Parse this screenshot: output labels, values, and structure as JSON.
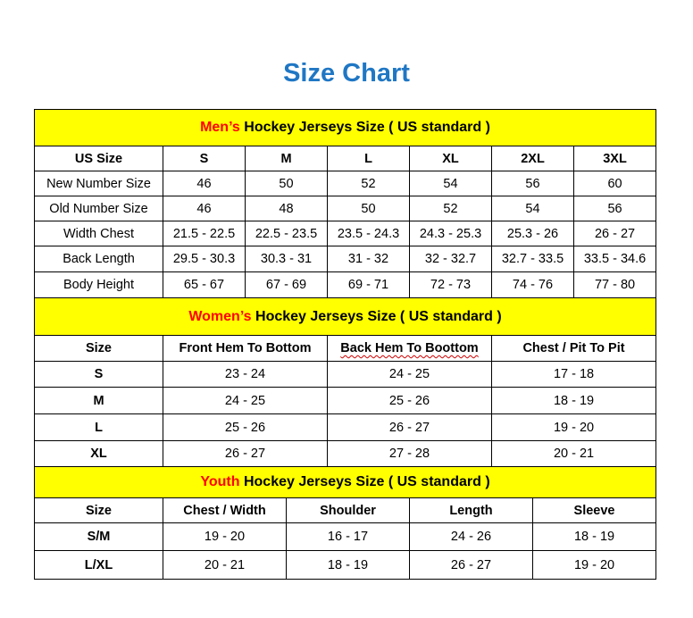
{
  "title": "Size Chart",
  "colors": {
    "title": "#1f77c4",
    "section_bg": "#ffff00",
    "section_highlight": "#ff0000"
  },
  "sections": [
    {
      "highlight": "Men’s",
      "heading": " Hockey Jerseys Size ( US standard )",
      "columns": [
        "US Size",
        "S",
        "M",
        "L",
        "XL",
        "2XL",
        "3XL"
      ],
      "rows": [
        [
          "New Number Size",
          "46",
          "50",
          "52",
          "54",
          "56",
          "60"
        ],
        [
          "Old Number Size",
          "46",
          "48",
          "50",
          "52",
          "54",
          "56"
        ],
        [
          "Width Chest",
          "21.5 - 22.5",
          "22.5 - 23.5",
          "23.5 - 24.3",
          "24.3 - 25.3",
          "25.3 - 26",
          "26 - 27"
        ],
        [
          "Back Length",
          "29.5 - 30.3",
          "30.3 - 31",
          "31 - 32",
          "32 - 32.7",
          "32.7 - 33.5",
          "33.5 - 34.6"
        ],
        [
          "Body Height",
          "65 - 67",
          "67 - 69",
          "69 - 71",
          "72 - 73",
          "74 - 76",
          "77 - 80"
        ]
      ]
    },
    {
      "highlight": "Women’s",
      "heading": " Hockey Jerseys Size ( US standard )",
      "columns": [
        "Size",
        "Front Hem To Bottom",
        "Back Hem To Boottom",
        "Chest / Pit To Pit"
      ],
      "rows": [
        [
          "S",
          "23 - 24",
          "24 - 25",
          "17 - 18"
        ],
        [
          "M",
          "24 - 25",
          "25 - 26",
          "18 - 19"
        ],
        [
          "L",
          "25 - 26",
          "26 - 27",
          "19 - 20"
        ],
        [
          "XL",
          "26 - 27",
          "27 - 28",
          "20 - 21"
        ]
      ]
    },
    {
      "highlight": "Youth",
      "heading": " Hockey Jerseys Size ( US standard )",
      "columns": [
        "Size",
        "Chest / Width",
        "Shoulder",
        "Length",
        "Sleeve"
      ],
      "rows": [
        [
          "S/M",
          "19 - 20",
          "16 - 17",
          "24 - 26",
          "18 - 19"
        ],
        [
          "L/XL",
          "20 - 21",
          "18 - 19",
          "26 - 27",
          "19 - 20"
        ]
      ]
    }
  ]
}
